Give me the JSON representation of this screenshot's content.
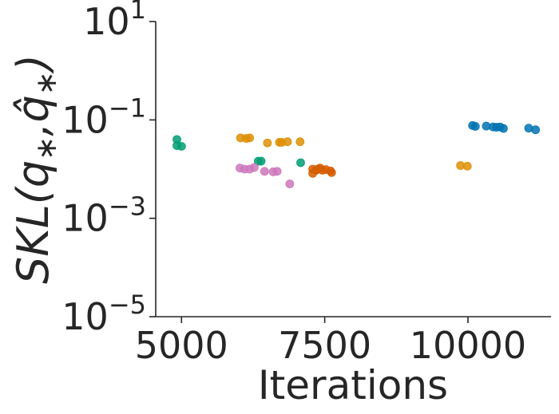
{
  "chart_data": {
    "type": "scatter",
    "title": "",
    "xlabel": "Iterations",
    "ylabel": "SKL(q*, q̂*)",
    "xlim": [
      4550,
      11450
    ],
    "ylim_log10": [
      -5,
      1
    ],
    "yscale": "log",
    "grid": false,
    "legend": "none",
    "x_ticks": [
      5000,
      7500,
      10000
    ],
    "x_tick_labels": [
      "5000",
      "7500",
      "10000"
    ],
    "y_ticks_exponent": [
      1,
      -1,
      -3,
      -5
    ],
    "y_tick_labels": [
      {
        "base": "10",
        "exp": "1"
      },
      {
        "base": "10",
        "exp": "−1"
      },
      {
        "base": "10",
        "exp": "−3"
      },
      {
        "base": "10",
        "exp": "−5"
      }
    ],
    "series": [
      {
        "color": "#0173b2",
        "points": [
          {
            "x": 10080,
            "y": 0.077
          },
          {
            "x": 10130,
            "y": 0.074
          },
          {
            "x": 10320,
            "y": 0.075
          },
          {
            "x": 10440,
            "y": 0.072
          },
          {
            "x": 10500,
            "y": 0.071
          },
          {
            "x": 10560,
            "y": 0.072
          },
          {
            "x": 10620,
            "y": 0.067
          },
          {
            "x": 11060,
            "y": 0.068
          },
          {
            "x": 11180,
            "y": 0.063
          }
        ]
      },
      {
        "color": "#de8f05",
        "points": [
          {
            "x": 6030,
            "y": 0.043
          },
          {
            "x": 6130,
            "y": 0.042
          },
          {
            "x": 6190,
            "y": 0.043
          },
          {
            "x": 6500,
            "y": 0.034
          },
          {
            "x": 6710,
            "y": 0.035
          },
          {
            "x": 6750,
            "y": 0.035
          },
          {
            "x": 6850,
            "y": 0.036
          },
          {
            "x": 7070,
            "y": 0.036
          },
          {
            "x": 9870,
            "y": 0.0118
          },
          {
            "x": 9990,
            "y": 0.0115
          }
        ]
      },
      {
        "color": "#029e73",
        "points": [
          {
            "x": 4920,
            "y": 0.04
          },
          {
            "x": 4920,
            "y": 0.03
          },
          {
            "x": 5000,
            "y": 0.029
          },
          {
            "x": 6340,
            "y": 0.0145
          },
          {
            "x": 6390,
            "y": 0.0145
          },
          {
            "x": 7080,
            "y": 0.0135
          }
        ]
      },
      {
        "color": "#d55e00",
        "points": [
          {
            "x": 7290,
            "y": 0.01
          },
          {
            "x": 7290,
            "y": 0.0082
          },
          {
            "x": 7350,
            "y": 0.0095
          },
          {
            "x": 7380,
            "y": 0.01
          },
          {
            "x": 7420,
            "y": 0.0105
          },
          {
            "x": 7460,
            "y": 0.0095
          },
          {
            "x": 7520,
            "y": 0.0098
          },
          {
            "x": 7600,
            "y": 0.0092
          },
          {
            "x": 7620,
            "y": 0.0085
          }
        ]
      },
      {
        "color": "#cc78bc",
        "points": [
          {
            "x": 6020,
            "y": 0.0105
          },
          {
            "x": 6100,
            "y": 0.01
          },
          {
            "x": 6190,
            "y": 0.01
          },
          {
            "x": 6270,
            "y": 0.0108
          },
          {
            "x": 6450,
            "y": 0.009
          },
          {
            "x": 6600,
            "y": 0.0088
          },
          {
            "x": 6670,
            "y": 0.009
          },
          {
            "x": 6890,
            "y": 0.005
          }
        ]
      }
    ]
  }
}
